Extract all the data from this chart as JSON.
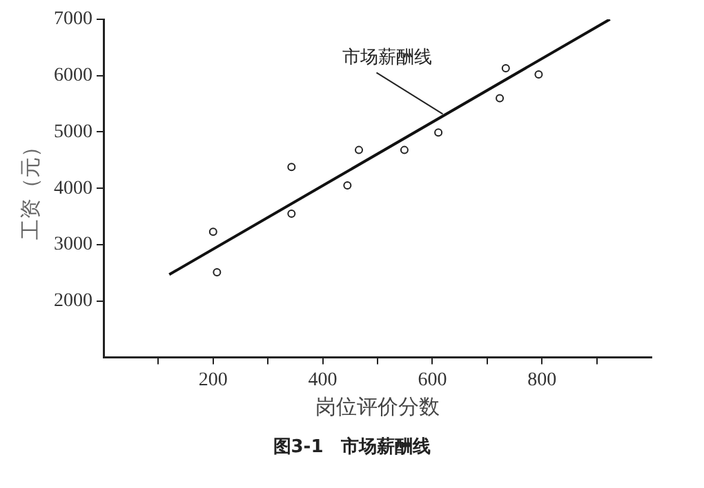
{
  "chart_data": {
    "type": "scatter",
    "xlabel": "岗位评价分数",
    "ylabel": "工资（元）",
    "xlim": [
      0,
      1000
    ],
    "ylim": [
      1000,
      7000
    ],
    "xticks": [
      {
        "value": 100,
        "label": null
      },
      200,
      {
        "value": 300,
        "label": null
      },
      400,
      {
        "value": 500,
        "label": null
      },
      600,
      {
        "value": 700,
        "label": null
      },
      800,
      {
        "value": 900,
        "label": null
      }
    ],
    "yticks": [
      2000,
      3000,
      4000,
      5000,
      6000,
      7000
    ],
    "grid": false,
    "legend": false,
    "marker": "circle",
    "series": [
      {
        "color": "#222222",
        "x": [
          200,
          207,
          343,
          343,
          445,
          466,
          549,
          611,
          723,
          734,
          794
        ],
        "values": [
          3230,
          2510,
          4380,
          3550,
          4050,
          4680,
          4680,
          4990,
          5600,
          6130,
          6020
        ]
      },
      {
        "type": "line",
        "color": "#111111",
        "x": [
          120,
          924
        ],
        "values": [
          2470,
          7000
        ],
        "marker": "none",
        "line_style": "solid"
      }
    ],
    "annotations": [
      {
        "text": "市场薪酬线",
        "x": 619,
        "y": 5320
      },
      "图3-1　市场薪酬线"
    ]
  }
}
